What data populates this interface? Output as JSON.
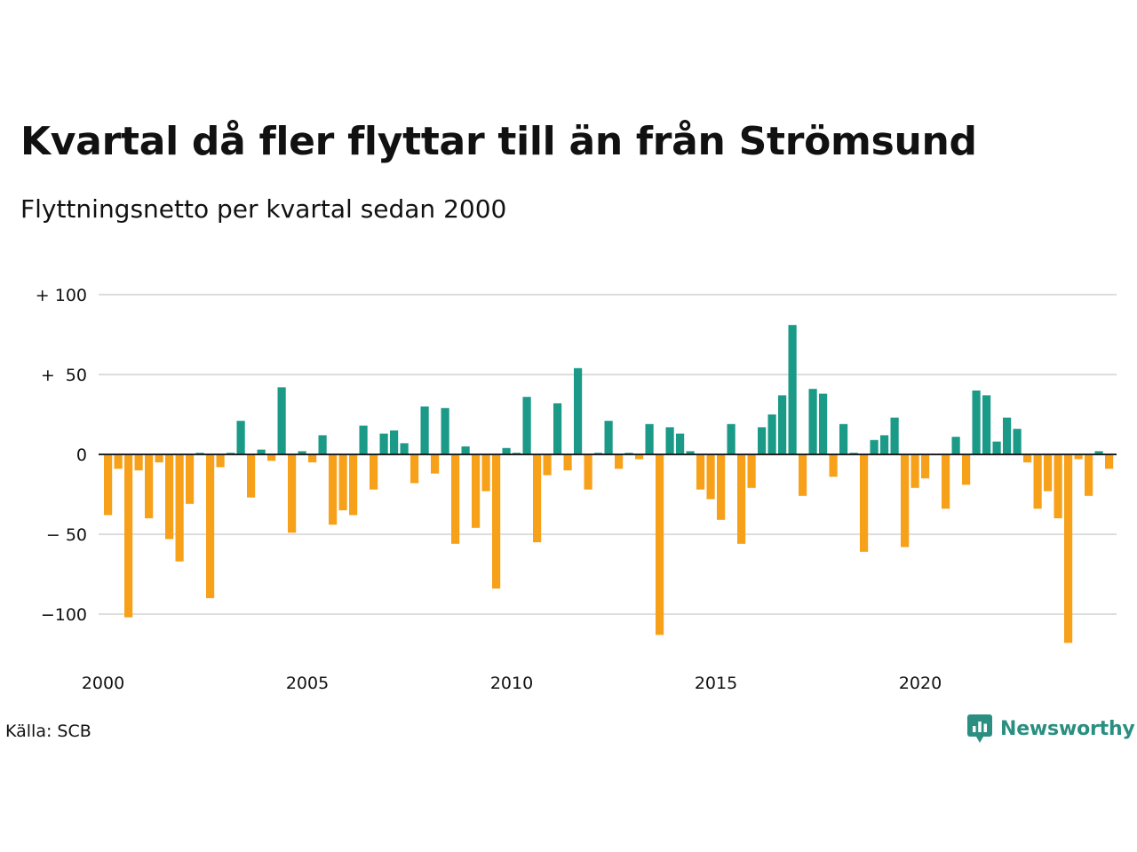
{
  "title": "Kvartal då fler flyttar till än från Strömsund",
  "subtitle": "Flyttningsnetto per kvartal sedan 2000",
  "source": "Källa: SCB",
  "brand": {
    "name": "Newsworthy",
    "icon": "newsworthy-logo-icon",
    "color": "#2a8f80"
  },
  "colors": {
    "positive": "#1a9a87",
    "negative": "#f7a11b",
    "grid": "#dddddd",
    "zero_line": "#222222"
  },
  "chart_data": {
    "type": "bar",
    "title": "Kvartal då fler flyttar till än från Strömsund",
    "subtitle": "Flyttningsnetto per kvartal sedan 2000",
    "xlabel": "",
    "ylabel": "",
    "ylim": [
      -120,
      100
    ],
    "xlim": [
      2000,
      2024.75
    ],
    "grid": true,
    "legend": "none",
    "y_ticks": [
      {
        "value": 100,
        "label": "+ 100"
      },
      {
        "value": 50,
        "label": "+  50"
      },
      {
        "value": 0,
        "label": "0"
      },
      {
        "value": -50,
        "label": "− 50"
      },
      {
        "value": -100,
        "label": "−100"
      }
    ],
    "x_ticks": [
      {
        "value": 2000,
        "label": "2000"
      },
      {
        "value": 2005,
        "label": "2005"
      },
      {
        "value": 2010,
        "label": "2010"
      },
      {
        "value": 2015,
        "label": "2015"
      },
      {
        "value": 2020,
        "label": "2020"
      }
    ],
    "categories": [
      "2000 K1",
      "2000 K2",
      "2000 K3",
      "2000 K4",
      "2001 K1",
      "2001 K2",
      "2001 K3",
      "2001 K4",
      "2002 K1",
      "2002 K2",
      "2002 K3",
      "2002 K4",
      "2003 K1",
      "2003 K2",
      "2003 K3",
      "2003 K4",
      "2004 K1",
      "2004 K2",
      "2004 K3",
      "2004 K4",
      "2005 K1",
      "2005 K2",
      "2005 K3",
      "2005 K4",
      "2006 K1",
      "2006 K2",
      "2006 K3",
      "2006 K4",
      "2007 K1",
      "2007 K2",
      "2007 K3",
      "2007 K4",
      "2008 K1",
      "2008 K2",
      "2008 K3",
      "2008 K4",
      "2009 K1",
      "2009 K2",
      "2009 K3",
      "2009 K4",
      "2010 K1",
      "2010 K2",
      "2010 K3",
      "2010 K4",
      "2011 K1",
      "2011 K2",
      "2011 K3",
      "2011 K4",
      "2012 K1",
      "2012 K2",
      "2012 K3",
      "2012 K4",
      "2013 K1",
      "2013 K2",
      "2013 K3",
      "2013 K4",
      "2014 K1",
      "2014 K2",
      "2014 K3",
      "2014 K4",
      "2015 K1",
      "2015 K2",
      "2015 K3",
      "2015 K4",
      "2016 K1",
      "2016 K2",
      "2016 K3",
      "2016 K4",
      "2017 K1",
      "2017 K2",
      "2017 K3",
      "2017 K4",
      "2018 K1",
      "2018 K2",
      "2018 K3",
      "2018 K4",
      "2019 K1",
      "2019 K2",
      "2019 K3",
      "2019 K4",
      "2020 K1",
      "2020 K2",
      "2020 K3",
      "2020 K4",
      "2021 K1",
      "2021 K2",
      "2021 K3",
      "2021 K4",
      "2022 K1",
      "2022 K2",
      "2022 K3",
      "2022 K4",
      "2023 K1",
      "2023 K2",
      "2023 K3",
      "2023 K4",
      "2024 K1",
      "2024 K2",
      "2024 K3",
      "2024 K4"
    ],
    "values": [
      -38,
      -9,
      -102,
      -10,
      -40,
      -5,
      -53,
      -67,
      -31,
      1,
      -90,
      -8,
      1,
      21,
      -27,
      3,
      -4,
      42,
      -49,
      2,
      -5,
      12,
      -44,
      -35,
      -38,
      18,
      -22,
      13,
      15,
      7,
      -18,
      30,
      -12,
      29,
      -56,
      5,
      -46,
      -23,
      -84,
      4,
      1,
      36,
      -55,
      -13,
      32,
      -10,
      54,
      -22,
      1,
      21,
      -9,
      1,
      -3,
      19,
      -113,
      17,
      13,
      2,
      -22,
      -28,
      -41,
      19,
      -56,
      -21,
      17,
      25,
      37,
      81,
      -26,
      41,
      38,
      -14,
      19,
      1,
      -61,
      9,
      12,
      23,
      -58,
      -21,
      -15,
      0,
      -34,
      11,
      -19,
      40,
      37,
      8,
      23,
      16,
      -5,
      -34,
      -23,
      -40,
      -118,
      -3,
      -26,
      2,
      -9,
      0
    ]
  }
}
